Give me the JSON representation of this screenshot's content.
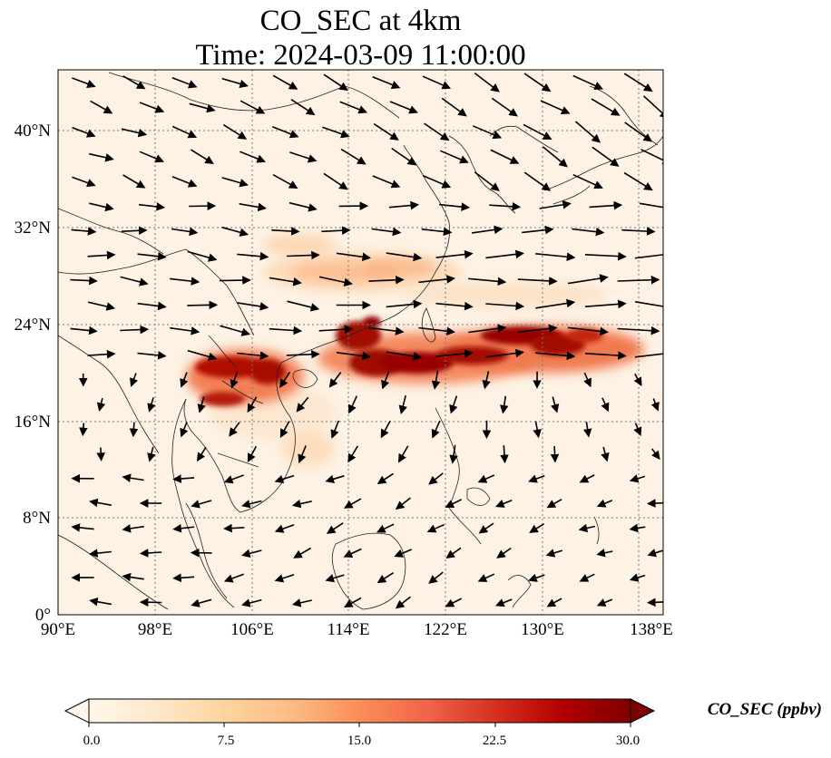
{
  "title": {
    "line1": "CO_SEC at 4km",
    "line2": "Time: 2024-03-09 11:00:00"
  },
  "map": {
    "lon_range": [
      90,
      140
    ],
    "lat_range": [
      0,
      45
    ],
    "lon_ticks": [
      "90°E",
      "98°E",
      "106°E",
      "114°E",
      "122°E",
      "130°E",
      "138°E"
    ],
    "lat_ticks": [
      "0°",
      "8°N",
      "16°N",
      "24°N",
      "32°N",
      "40°N"
    ],
    "gridlines": true,
    "wind_vectors": true,
    "plumes": [
      {
        "region": "northern Indochina / southern China",
        "intensity": "high"
      },
      {
        "region": "south China coast to Taiwan",
        "intensity": "high"
      },
      {
        "region": "east of Taiwan toward 135°E",
        "intensity": "high"
      },
      {
        "region": "central China 30°N",
        "intensity": "moderate"
      }
    ]
  },
  "colorbar": {
    "label": "CO_SEC (ppbv)",
    "min": 0,
    "max": 30,
    "ticks": [
      "0.0",
      "7.5",
      "15.0",
      "22.5",
      "30.0"
    ],
    "colormap": "OrRd",
    "extend": "both",
    "colors": [
      "#fff7ec",
      "#fee8c8",
      "#fdd49e",
      "#fdbb84",
      "#fc8d59",
      "#ef6548",
      "#d7301f",
      "#b30000",
      "#7f0000"
    ]
  }
}
